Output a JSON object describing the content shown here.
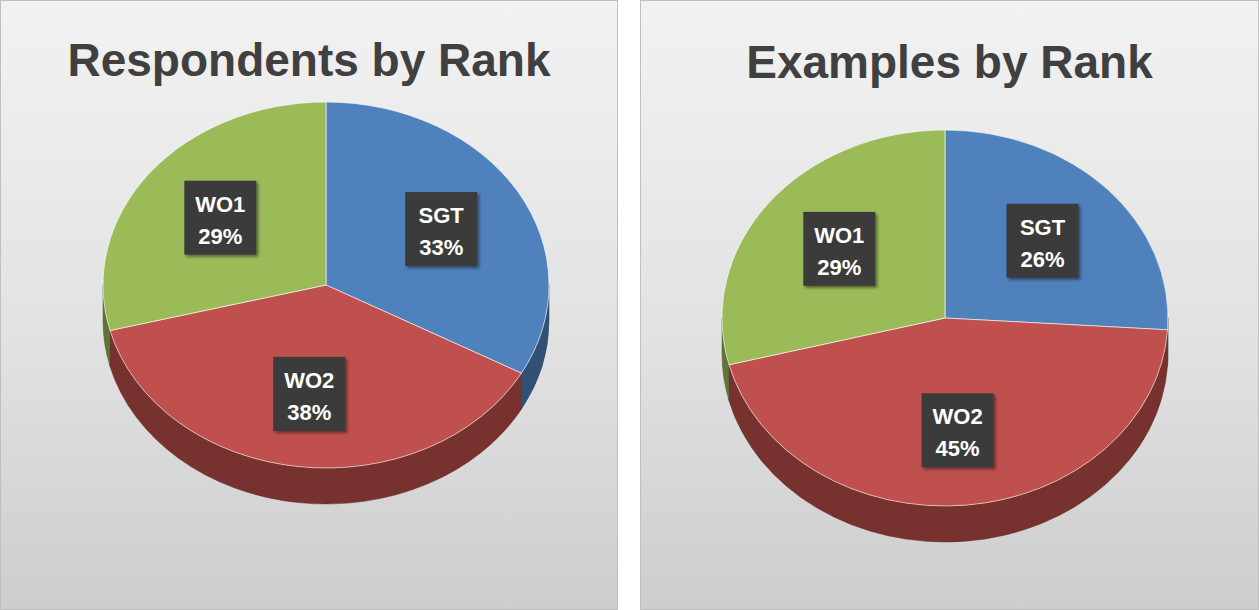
{
  "chart_data": [
    {
      "type": "pie",
      "title": "Respondents by Rank",
      "categories": [
        "SGT",
        "WO2",
        "WO1"
      ],
      "values": [
        33,
        38,
        29
      ],
      "value_labels": [
        "33%",
        "38%",
        "29%"
      ],
      "colors": [
        "#4f81bd",
        "#c0504d",
        "#9bbb59"
      ],
      "data_labels": true
    },
    {
      "type": "pie",
      "title": "Examples by Rank",
      "categories": [
        "SGT",
        "WO2",
        "WO1"
      ],
      "values": [
        26,
        45,
        29
      ],
      "value_labels": [
        "26%",
        "45%",
        "29%"
      ],
      "colors": [
        "#4f81bd",
        "#c0504d",
        "#9bbb59"
      ],
      "data_labels": true
    }
  ]
}
